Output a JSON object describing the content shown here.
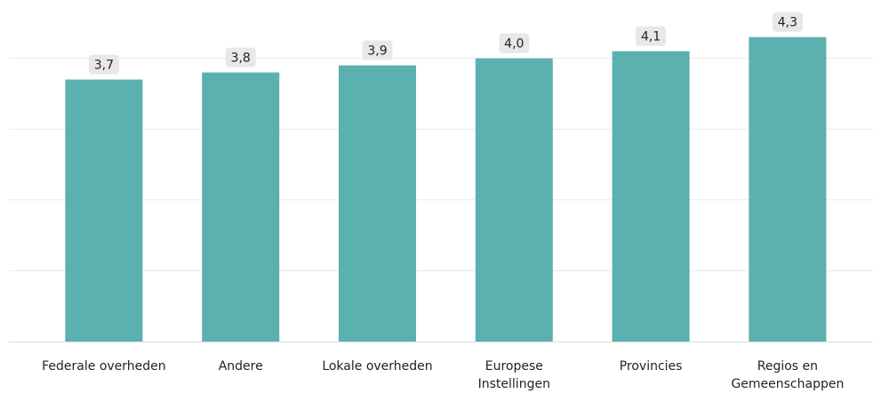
{
  "chart_data": {
    "type": "bar",
    "categories": [
      "Federale overheden",
      "Andere",
      "Lokale overheden",
      "Europese Instellingen",
      "Provincies",
      "Regios en Gemeenschappen"
    ],
    "category_label_lines": [
      [
        "Federale overheden"
      ],
      [
        "Andere"
      ],
      [
        "Lokale overheden"
      ],
      [
        "Europese",
        "Instellingen"
      ],
      [
        "Provincies"
      ],
      [
        "Regios en",
        "Gemeenschappen"
      ]
    ],
    "values": [
      3.7,
      3.8,
      3.9,
      4.0,
      4.1,
      4.3
    ],
    "data_labels": [
      "3,7",
      "3,8",
      "3,9",
      "4,0",
      "4,1",
      "4,3"
    ],
    "ylim": [
      0,
      4.95
    ],
    "gridlines": [
      1,
      2,
      3,
      4
    ],
    "grid": true,
    "legend": "none",
    "colors": {
      "bar": "#5bb0b0",
      "label_bg": "#e8e8e8",
      "grid": "#e9e9e9",
      "baseline": "#dcdcdc",
      "text": "#222222"
    }
  }
}
